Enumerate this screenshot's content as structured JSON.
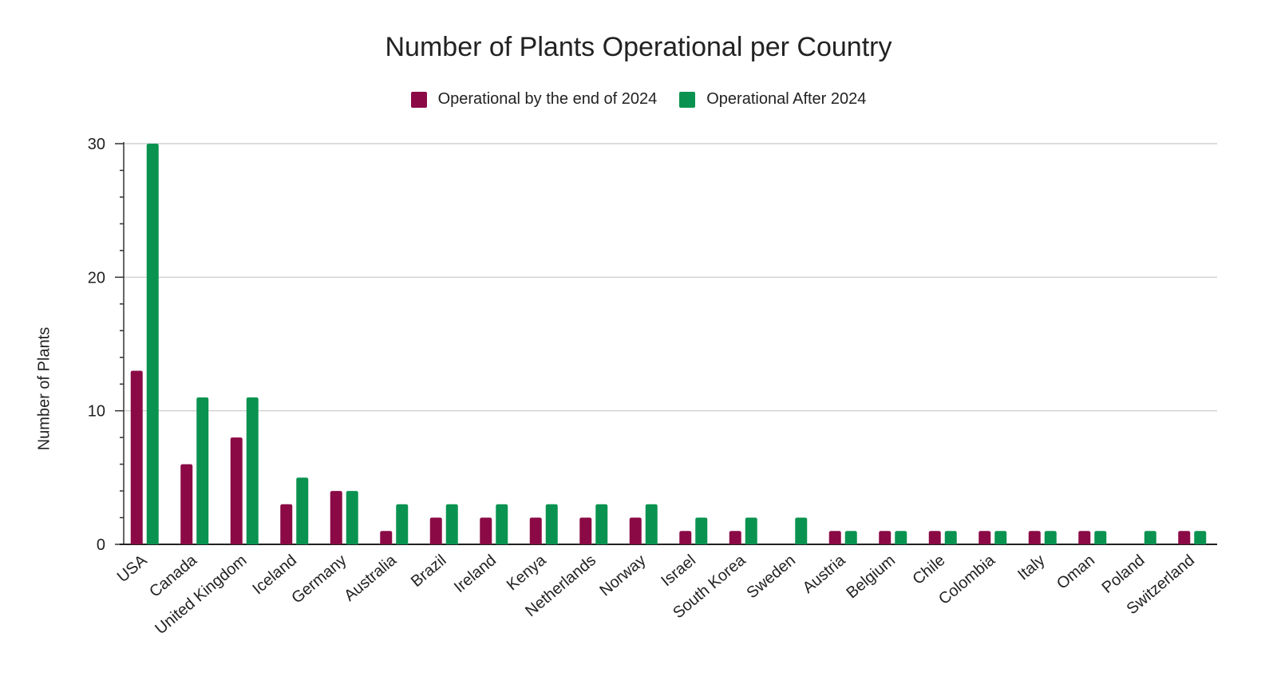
{
  "chart_data": {
    "type": "bar",
    "title": "Number of Plants Operational per Country",
    "xlabel": "",
    "ylabel": "Number of Plants",
    "ylim": [
      0,
      30
    ],
    "yticks": [
      0,
      10,
      20,
      30
    ],
    "grid": true,
    "legend_position": "top-center",
    "categories": [
      "USA",
      "Canada",
      "United Kingdom",
      "Iceland",
      "Germany",
      "Australia",
      "Brazil",
      "Ireland",
      "Kenya",
      "Netherlands",
      "Norway",
      "Israel",
      "South Korea",
      "Sweden",
      "Austria",
      "Belgium",
      "Chile",
      "Colombia",
      "Italy",
      "Oman",
      "Poland",
      "Switzerland"
    ],
    "series": [
      {
        "name": "Operational by the end of 2024",
        "color": "#8b0a46",
        "values": [
          13,
          6,
          8,
          3,
          4,
          1,
          2,
          2,
          2,
          2,
          2,
          1,
          1,
          0,
          1,
          1,
          1,
          1,
          1,
          1,
          0,
          1
        ]
      },
      {
        "name": "Operational After 2024",
        "color": "#0a9350",
        "values": [
          30,
          11,
          11,
          5,
          4,
          3,
          3,
          3,
          3,
          3,
          3,
          2,
          2,
          2,
          1,
          1,
          1,
          1,
          1,
          1,
          1,
          1
        ]
      }
    ]
  }
}
